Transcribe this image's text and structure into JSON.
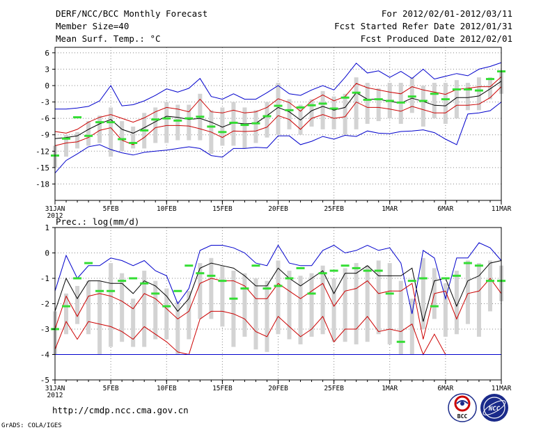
{
  "header": {
    "title": "DERF/NCC/BCC Monthly Forecast",
    "member_size": "Member Size=40",
    "variable": "Mean Surf. Temp.: °C",
    "forecast_period": "For 2012/02/01-2012/03/11",
    "start_refer": "Fcst Started Refer Date 2012/01/31",
    "produced": "Fcst Produced Date 2012/02/01"
  },
  "footer": {
    "url": "http://cmdp.ncc.cma.gov.cn",
    "grads": "GrADS: COLA/IGES",
    "logo_bcc_text": "BCC",
    "logo_ncc_text": "NCC"
  },
  "colors": {
    "envelope": "#0000cc",
    "spread": "#cc0000",
    "mean": "#000000",
    "box": "#d3d3d3",
    "obs": "#33dd33",
    "grid": "#888888"
  },
  "chart_data": [
    {
      "type": "box-line",
      "title": "Mean Surf. Temp.: °C",
      "x_tick_labels": [
        "31JAN",
        "5FEB",
        "10FEB",
        "15FEB",
        "20FEB",
        "25FEB",
        "1MAR",
        "6MAR",
        "11MAR"
      ],
      "x_tick_days": [
        0,
        5,
        10,
        15,
        20,
        25,
        30,
        35,
        40
      ],
      "x_year_label": "2012",
      "ylim": [
        -21,
        7
      ],
      "y_ticks": [
        6,
        3,
        0,
        -3,
        -6,
        -9,
        -12,
        -15,
        -18
      ],
      "series": [
        {
          "name": "max",
          "values": [
            -4.3,
            -4.3,
            -4.1,
            -3.8,
            -2.8,
            0,
            -3.7,
            -3.5,
            -2.8,
            -1.8,
            -0.6,
            -1.2,
            -0.5,
            1.3,
            -2,
            -2.5,
            -1.5,
            -2.5,
            -2.5,
            -1.3,
            0,
            -1.5,
            -1.8,
            -0.8,
            0,
            -0.8,
            1.5,
            4.1,
            2.3,
            2.7,
            1.5,
            2.6,
            1.3,
            3,
            1.2,
            1.7,
            2.2,
            1.8,
            3,
            3.5,
            4.2
          ]
        },
        {
          "name": "upper",
          "values": [
            -8.4,
            -8.7,
            -8,
            -6.7,
            -5.8,
            -5.3,
            -6,
            -6.7,
            -5.9,
            -4.8,
            -4,
            -4.3,
            -4.8,
            -2.5,
            -4.8,
            -5,
            -4.5,
            -5,
            -4.8,
            -4,
            -2.4,
            -3.1,
            -4.7,
            -2.8,
            -1.7,
            -2.8,
            -2,
            0.4,
            -0.4,
            -0.8,
            -1.2,
            -1.5,
            -0.2,
            -0.8,
            -1.2,
            -1.6,
            -0.7,
            -0.5,
            -0.2,
            -0.2,
            1.6
          ]
        },
        {
          "name": "mean",
          "values": [
            -9.7,
            -9.5,
            -9.2,
            -8,
            -7,
            -6.2,
            -8,
            -8.7,
            -7.7,
            -6.6,
            -5.6,
            -5.8,
            -6.2,
            -6,
            -6.7,
            -7.6,
            -6.8,
            -7,
            -6.9,
            -5.5,
            -4,
            -4.8,
            -6.3,
            -4.6,
            -3.8,
            -4.5,
            -4,
            -1.3,
            -2.5,
            -2.5,
            -2.9,
            -3.2,
            -2.3,
            -2.9,
            -3.6,
            -3.7,
            -2.2,
            -2.2,
            -1.9,
            -0.6,
            0.8
          ]
        },
        {
          "name": "lower",
          "values": [
            -11,
            -10.5,
            -10.3,
            -9.5,
            -8.2,
            -7.7,
            -10,
            -10.8,
            -9.5,
            -7.7,
            -7.3,
            -7.3,
            -7.4,
            -7.9,
            -8.5,
            -9.5,
            -8.3,
            -8.4,
            -8.3,
            -7.6,
            -5.5,
            -6.2,
            -8,
            -6,
            -5.3,
            -6,
            -5.7,
            -3,
            -4,
            -4,
            -4.3,
            -4.7,
            -3.8,
            -4.4,
            -5,
            -5,
            -3.6,
            -3.6,
            -3.4,
            -2.2,
            -0.2
          ]
        },
        {
          "name": "min",
          "values": [
            -16,
            -13.7,
            -12.5,
            -11.2,
            -10.8,
            -11.7,
            -12.3,
            -12.7,
            -12.2,
            -12,
            -11.8,
            -11.5,
            -11.2,
            -11.5,
            -12.8,
            -13.1,
            -11.5,
            -11.5,
            -11.3,
            -11.4,
            -9.2,
            -9.2,
            -10.8,
            -10.2,
            -9.3,
            -9.8,
            -9.1,
            -9.3,
            -8.3,
            -8.7,
            -8.8,
            -8.4,
            -8.3,
            -8.1,
            -8.6,
            -9.8,
            -10.8,
            -5.2,
            -5,
            -4.6,
            -3
          ]
        },
        {
          "name": "observed",
          "values": [
            -12.8,
            -9.7,
            -5.8,
            -9.2,
            -6.7,
            -6.7,
            -9.8,
            -10.5,
            -8.2,
            -6.2,
            -6,
            -6.4,
            -6,
            -5.7,
            -7.5,
            -8.5,
            -6.8,
            -7.2,
            -6.9,
            -5.6,
            -3.7,
            -4.5,
            -4,
            -3.6,
            -3.3,
            -4.2,
            -2.2,
            -1.3,
            -2.6,
            -2.5,
            -2.8,
            -3.1,
            -2,
            -2.8,
            -1.5,
            -2.5,
            -0.7,
            -0.7,
            -0.9,
            1.2,
            2.6
          ]
        }
      ],
      "box_low": [
        -15,
        -13,
        -11.5,
        -11,
        -10.5,
        -13,
        -12,
        -11.5,
        -11.5,
        -10.5,
        -10.5,
        -10,
        -10,
        -10,
        -12.5,
        -11,
        -11,
        -11.5,
        -10.5,
        -9.5,
        -9,
        -8,
        -9,
        -7.5,
        -8,
        -8,
        -9,
        -8,
        -7,
        -6.5,
        -6,
        -7,
        -5,
        -7.5,
        -6,
        -7,
        -6,
        -4.5,
        -4.5,
        -2.5,
        -1.5
      ],
      "box_high": [
        -11,
        -9,
        -8.5,
        -6.5,
        -5.5,
        -4,
        -6.5,
        -7.5,
        -5,
        -4,
        -3,
        -3.5,
        -3.5,
        -1.5,
        -4.5,
        -4,
        -3,
        -4,
        -4.5,
        -3,
        0.5,
        -2.5,
        -3.5,
        -2.5,
        -1,
        -2,
        -1.5,
        1.5,
        0.5,
        -0.5,
        0.5,
        0.5,
        1.5,
        0,
        0.5,
        0.5,
        1,
        0.5,
        1.5,
        1.5,
        2.5
      ]
    },
    {
      "type": "box-line",
      "title": "Prec.: log(mm/d)",
      "x_tick_labels": [
        "31JAN",
        "5FEB",
        "10FEB",
        "15FEB",
        "20FEB",
        "25FEB",
        "1MAR",
        "6MAR",
        "11MAR"
      ],
      "x_tick_days": [
        0,
        5,
        10,
        15,
        20,
        25,
        30,
        35,
        40
      ],
      "x_year_label": "2012",
      "ylim": [
        -5,
        1
      ],
      "y_ticks": [
        1,
        0,
        -1,
        -2,
        -3,
        -4,
        -5
      ],
      "series": [
        {
          "name": "max",
          "values": [
            -1.5,
            -0.1,
            -1,
            -0.5,
            -0.5,
            -0.2,
            -0.3,
            -0.5,
            -0.3,
            -0.7,
            -0.9,
            -2,
            -1.4,
            0.1,
            0.3,
            0.3,
            0.2,
            0,
            -0.4,
            -0.5,
            0.3,
            -0.4,
            -0.5,
            -0.5,
            0.1,
            0.3,
            0,
            0.1,
            0.3,
            0.1,
            0.2,
            -0.4,
            -2.4,
            0.1,
            -0.2,
            -1.8,
            -0.2,
            -0.2,
            0.4,
            0.2,
            -0.3
          ]
        },
        {
          "name": "mean",
          "values": [
            -2.3,
            -1,
            -1.8,
            -1.1,
            -1.1,
            -1.2,
            -1.2,
            -1.6,
            -1.1,
            -1.3,
            -1.7,
            -2.3,
            -1.8,
            -0.6,
            -0.4,
            -0.5,
            -0.6,
            -0.9,
            -1.3,
            -1.3,
            -0.6,
            -1,
            -1.3,
            -1,
            -0.7,
            -1.6,
            -0.8,
            -0.8,
            -0.5,
            -0.9,
            -0.9,
            -0.9,
            -0.6,
            -2.7,
            -1.1,
            -1,
            -2.1,
            -1.1,
            -0.9,
            -0.4,
            -0.3
          ]
        },
        {
          "name": "upper",
          "values": [
            -3,
            -1.7,
            -2.5,
            -1.7,
            -1.6,
            -1.7,
            -1.9,
            -2.2,
            -1.6,
            -1.8,
            -2.2,
            -2.6,
            -2.3,
            -1.2,
            -1,
            -1.1,
            -1.1,
            -1.3,
            -1.8,
            -1.8,
            -1.2,
            -1.5,
            -1.8,
            -1.5,
            -1.2,
            -2.1,
            -1.5,
            -1.4,
            -1.1,
            -1.6,
            -1.5,
            -1.5,
            -1.2,
            -3.4,
            -1.6,
            -1.5,
            -2.6,
            -1.6,
            -1.5,
            -1,
            -1.6
          ]
        },
        {
          "name": "lower",
          "values": [
            -3.8,
            -2.7,
            -3.4,
            -2.7,
            -2.8,
            -2.9,
            -3.1,
            -3.4,
            -2.9,
            -3.2,
            -3.5,
            -3.9,
            -4,
            -2.6,
            -2.3,
            -2.3,
            -2.4,
            -2.6,
            -3.1,
            -3.3,
            -2.5,
            -2.9,
            -3.3,
            -3,
            -2.5,
            -3.5,
            -3,
            -3,
            -2.5,
            -3.1,
            -3,
            -3.1,
            -2.8,
            -4,
            -3.2,
            -4,
            -4,
            -4,
            -4,
            -4,
            -4
          ]
        },
        {
          "name": "min",
          "values": [
            -4,
            -4,
            -4,
            -4,
            -4,
            -4,
            -4,
            -4,
            -4,
            -4,
            -4,
            -4,
            -4,
            -4,
            -4,
            -4,
            -4,
            -4,
            -4,
            -4,
            -4,
            -4,
            -4,
            -4,
            -4,
            -4,
            -4,
            -4,
            -4,
            -4,
            -4,
            -4,
            -4,
            -4,
            -4,
            -4,
            -4,
            -4,
            -4,
            -4,
            -4
          ]
        },
        {
          "name": "observed",
          "values": [
            -3,
            -2.1,
            -1,
            -0.4,
            -1.5,
            -1.5,
            -1.1,
            -1,
            -1.2,
            -1.6,
            -2.1,
            -1.5,
            -0.5,
            -0.8,
            -0.9,
            -1.1,
            -1.8,
            -1.4,
            -0.5,
            -1.4,
            -1.3,
            -1,
            -0.6,
            -1.6,
            -0.8,
            -0.7,
            -0.5,
            -0.6,
            -0.7,
            -0.7,
            -1.6,
            -3.5,
            -1.1,
            -1,
            -2.1,
            -1,
            -0.9,
            -0.4,
            -0.5,
            -1.1,
            -1.1
          ]
        }
      ],
      "box_low": [
        -4,
        -3.2,
        -2.8,
        -3.2,
        -4,
        -3.7,
        -3.5,
        -3.7,
        -3.7,
        -3.4,
        -3.4,
        -4,
        -3.4,
        -2.6,
        -2.6,
        -2.9,
        -3.7,
        -3.3,
        -3.8,
        -3.9,
        -3.2,
        -3.4,
        -3.6,
        -3.3,
        -3.2,
        -3.5,
        -3.5,
        -3.6,
        -3.5,
        -3.2,
        -3.6,
        -4,
        -4,
        -3,
        -2.6,
        -3.3,
        -3.2,
        -2.8,
        -3.3,
        -2.3,
        -1.9
      ],
      "box_high": [
        -2.3,
        -1.6,
        -1.3,
        -1.1,
        -1.1,
        -0.4,
        -0.8,
        -1.8,
        -0.7,
        -1.1,
        -1.4,
        -1.9,
        -1.5,
        -0.4,
        -0.2,
        -0.5,
        -0.7,
        -0.8,
        -1,
        -1.1,
        -0.3,
        -0.7,
        -0.9,
        -0.8,
        -0.5,
        -1,
        -0.6,
        -0.4,
        -0.5,
        -0.3,
        -0.4,
        -1.1,
        -1.8,
        -0.2,
        -0.6,
        -1.2,
        -0.7,
        -0.3,
        -0.4,
        -0.3,
        -0.5
      ]
    }
  ]
}
